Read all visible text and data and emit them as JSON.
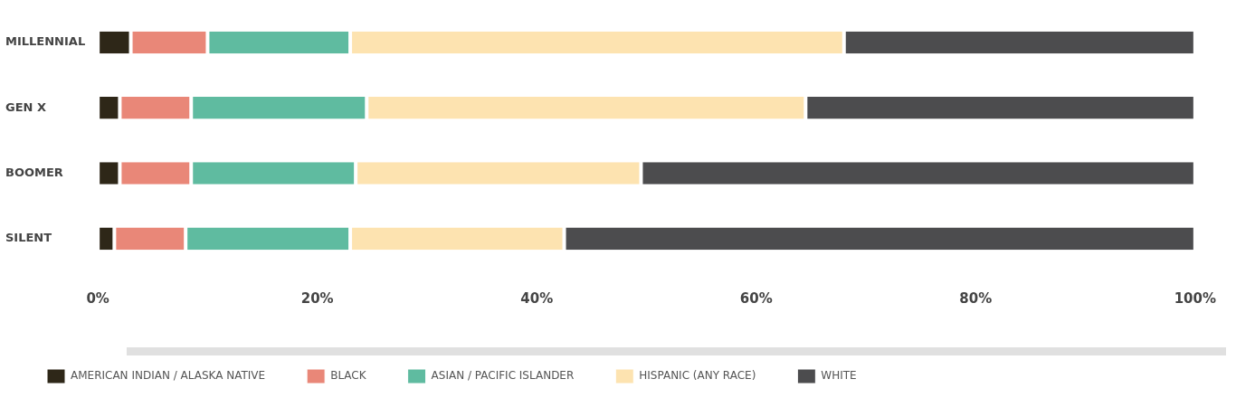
{
  "chart_data": {
    "type": "bar",
    "orientation": "horizontal",
    "stacked": true,
    "categories": [
      "MILLENNIAL",
      "GEN X",
      "BOOMER",
      "SILENT"
    ],
    "series": [
      {
        "name": "AMERICAN INDIAN / ALASKA NATIVE",
        "color": "#2e2718",
        "values": [
          3,
          2,
          2,
          1.5
        ]
      },
      {
        "name": "BLACK",
        "color": "#e98778",
        "values": [
          7,
          6.5,
          6.5,
          6.5
        ]
      },
      {
        "name": "ASIAN / PACIFIC ISLANDER",
        "color": "#5fbba0",
        "values": [
          13,
          16,
          15,
          15
        ]
      },
      {
        "name": "HISPANIC (ANY RACE)",
        "color": "#fde3b0",
        "values": [
          45,
          40,
          26,
          19.5
        ]
      },
      {
        "name": "WHITE",
        "color": "#4c4c4e",
        "values": [
          32,
          35.5,
          50.5,
          57.5
        ]
      }
    ],
    "xlim": [
      0,
      100
    ],
    "xticks": [
      {
        "value": 0,
        "label": "0%"
      },
      {
        "value": 20,
        "label": "20%"
      },
      {
        "value": 40,
        "label": "40%"
      },
      {
        "value": 60,
        "label": "60%"
      },
      {
        "value": 80,
        "label": "80%"
      },
      {
        "value": 100,
        "label": "100%"
      }
    ],
    "grid": false,
    "legend": "bottom"
  }
}
